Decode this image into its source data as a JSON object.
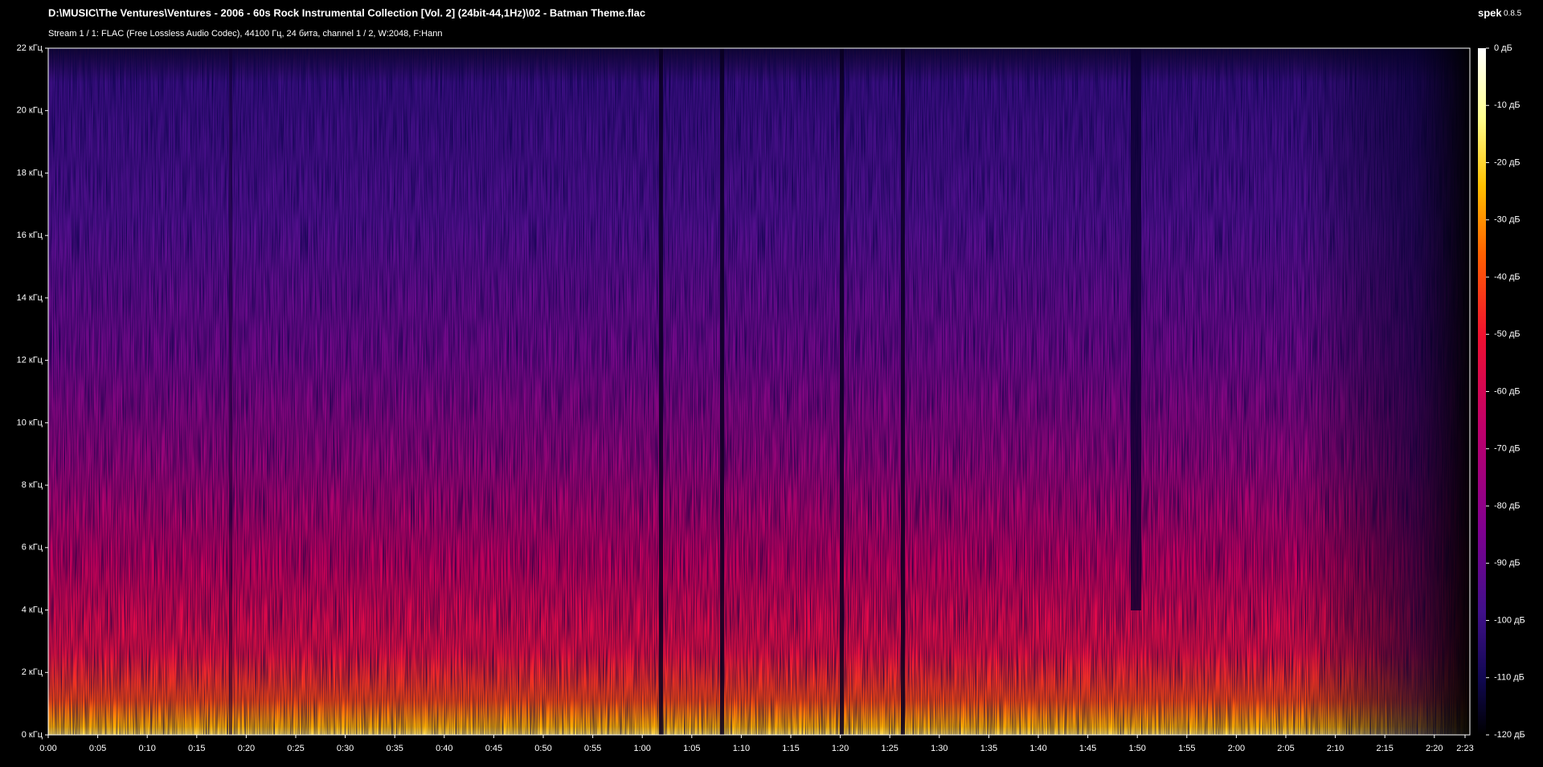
{
  "header": {
    "title": "D:\\MUSIC\\The Ventures\\Ventures - 2006 - 60s Rock Instrumental Collection [Vol. 2] (24bit-44,1Hz)\\02 - Batman Theme.flac",
    "stream": "Stream 1 / 1: FLAC (Free Lossless Audio Codec), 44100 Гц, 24 бита, channel 1 / 2, W:2048, F:Hann",
    "app": "spek",
    "version": "0.8.5"
  },
  "frequency_axis": {
    "labels": [
      "0 кГц",
      "2 кГц",
      "4 кГц",
      "6 кГц",
      "8 кГц",
      "10 кГц",
      "12 кГц",
      "14 кГц",
      "16 кГц",
      "18 кГц",
      "20 кГц",
      "22 кГц"
    ]
  },
  "time_axis": {
    "labels": [
      "0:00",
      "0:05",
      "0:10",
      "0:15",
      "0:20",
      "0:25",
      "0:30",
      "0:35",
      "0:40",
      "0:45",
      "0:50",
      "0:55",
      "1:00",
      "1:05",
      "1:10",
      "1:15",
      "1:20",
      "1:25",
      "1:30",
      "1:35",
      "1:40",
      "1:45",
      "1:50",
      "1:55",
      "2:00",
      "2:05",
      "2:10",
      "2:15",
      "2:20",
      "2:23"
    ]
  },
  "level_scale": {
    "labels": [
      "0 дБ",
      "-10 дБ",
      "-20 дБ",
      "-30 дБ",
      "-40 дБ",
      "-50 дБ",
      "-60 дБ",
      "-70 дБ",
      "-80 дБ",
      "-90 дБ",
      "-100 дБ",
      "-110 дБ",
      "-120 дБ"
    ]
  }
}
